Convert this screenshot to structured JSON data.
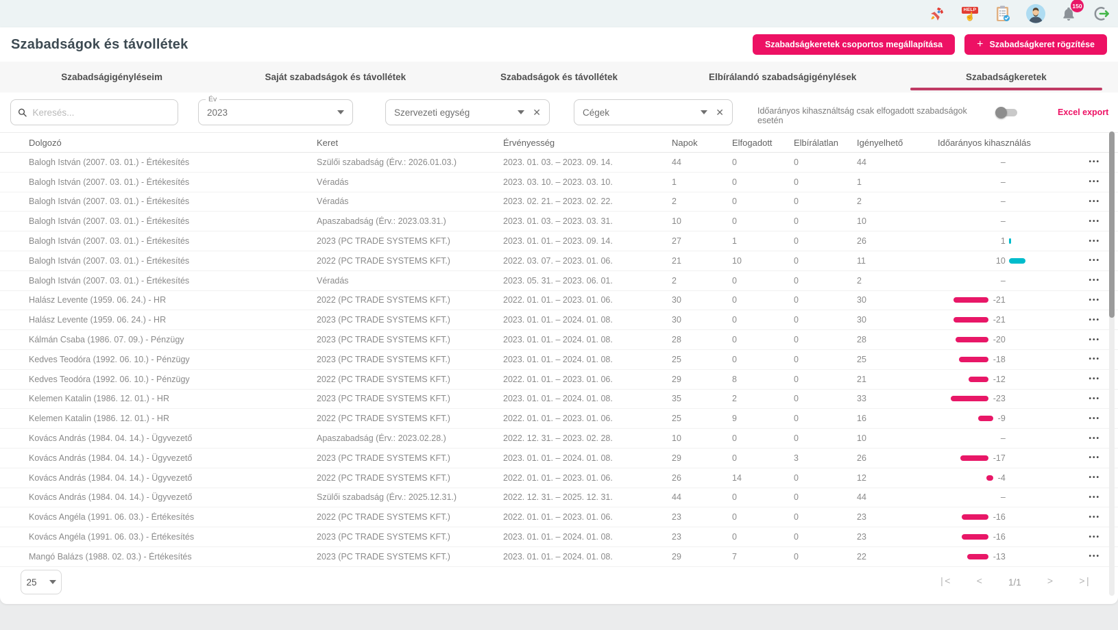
{
  "topbar": {
    "notification_count": "150",
    "help_text": "HELP"
  },
  "header": {
    "title": "Szabadságok és távollétek",
    "buttons": [
      {
        "label": "Szabadságkeretek csoportos megállapítása"
      },
      {
        "label": "Szabadságkeret rögzítése",
        "icon": "+"
      }
    ]
  },
  "tabs": [
    {
      "id": "szabadsagigenyleseim",
      "label": "Szabadságigényléseim",
      "active": false
    },
    {
      "id": "sajat-szabadsagok",
      "label": "Saját szabadságok és távollétek",
      "active": false
    },
    {
      "id": "szabadsagok-es-tavolletek",
      "label": "Szabadságok és távollétek",
      "active": false
    },
    {
      "id": "elbiralando",
      "label": "Elbírálandó szabadságigénylések",
      "active": false
    },
    {
      "id": "szabadsagkeretek",
      "label": "Szabadságkeretek",
      "active": true
    }
  ],
  "filters": {
    "search_placeholder": "Keresés...",
    "year_label": "Év",
    "year_value": "2023",
    "org_unit_label": "Szervezeti egység",
    "companies_label": "Cégek",
    "toggle_label": "Időarányos kihasználtság csak elfogadott szabadságok esetén",
    "toggle_on": false,
    "excel_export_label": "Excel export",
    "clear_glyph": "✕"
  },
  "table": {
    "columns": [
      "Dolgozó",
      "Keret",
      "Érvényesség",
      "Napok",
      "Elfogadott",
      "Elbírálatlan",
      "Igényelhető",
      "Időarányos kihasználás"
    ],
    "empty_marker": "–",
    "rows": [
      {
        "dolgozo": "Balogh István (2007. 03. 01.) - Értékesítés",
        "keret": "Szülői szabadság (Érv.: 2026.01.03.)",
        "ervenyesseg": "2023. 01. 03. – 2023. 09. 14.",
        "napok": "44",
        "elfogadott": "0",
        "elbiralatlan": "0",
        "igenyelheto": "44",
        "kihasznalas": null
      },
      {
        "dolgozo": "Balogh István (2007. 03. 01.) - Értékesítés",
        "keret": "Véradás",
        "ervenyesseg": "2023. 03. 10. – 2023. 03. 10.",
        "napok": "1",
        "elfogadott": "0",
        "elbiralatlan": "0",
        "igenyelheto": "1",
        "kihasznalas": null
      },
      {
        "dolgozo": "Balogh István (2007. 03. 01.) - Értékesítés",
        "keret": "Véradás",
        "ervenyesseg": "2023. 02. 21. – 2023. 02. 22.",
        "napok": "2",
        "elfogadott": "0",
        "elbiralatlan": "0",
        "igenyelheto": "2",
        "kihasznalas": null
      },
      {
        "dolgozo": "Balogh István (2007. 03. 01.) - Értékesítés",
        "keret": "Apaszabadság (Érv.: 2023.03.31.)",
        "ervenyesseg": "2023. 01. 03. – 2023. 03. 31.",
        "napok": "10",
        "elfogadott": "0",
        "elbiralatlan": "0",
        "igenyelheto": "10",
        "kihasznalas": null
      },
      {
        "dolgozo": "Balogh István (2007. 03. 01.) - Értékesítés",
        "keret": "2023 (PC TRADE SYSTEMS KFT.)",
        "ervenyesseg": "2023. 01. 01. – 2023. 09. 14.",
        "napok": "27",
        "elfogadott": "1",
        "elbiralatlan": "0",
        "igenyelheto": "26",
        "kihasznalas": 1
      },
      {
        "dolgozo": "Balogh István (2007. 03. 01.) - Értékesítés",
        "keret": "2022 (PC TRADE SYSTEMS KFT.)",
        "ervenyesseg": "2022. 03. 07. – 2023. 01. 06.",
        "napok": "21",
        "elfogadott": "10",
        "elbiralatlan": "0",
        "igenyelheto": "11",
        "kihasznalas": 10
      },
      {
        "dolgozo": "Balogh István (2007. 03. 01.) - Értékesítés",
        "keret": "Véradás",
        "ervenyesseg": "2023. 05. 31. – 2023. 06. 01.",
        "napok": "2",
        "elfogadott": "0",
        "elbiralatlan": "0",
        "igenyelheto": "2",
        "kihasznalas": null
      },
      {
        "dolgozo": "Halász Levente (1959. 06. 24.) - HR",
        "keret": "2022 (PC TRADE SYSTEMS KFT.)",
        "ervenyesseg": "2022. 01. 01. – 2023. 01. 06.",
        "napok": "30",
        "elfogadott": "0",
        "elbiralatlan": "0",
        "igenyelheto": "30",
        "kihasznalas": -21
      },
      {
        "dolgozo": "Halász Levente (1959. 06. 24.) - HR",
        "keret": "2023 (PC TRADE SYSTEMS KFT.)",
        "ervenyesseg": "2023. 01. 01. – 2024. 01. 08.",
        "napok": "30",
        "elfogadott": "0",
        "elbiralatlan": "0",
        "igenyelheto": "30",
        "kihasznalas": -21
      },
      {
        "dolgozo": "Kálmán Csaba (1986. 07. 09.) - Pénzügy",
        "keret": "2023 (PC TRADE SYSTEMS KFT.)",
        "ervenyesseg": "2023. 01. 01. – 2024. 01. 08.",
        "napok": "28",
        "elfogadott": "0",
        "elbiralatlan": "0",
        "igenyelheto": "28",
        "kihasznalas": -20
      },
      {
        "dolgozo": "Kedves Teodóra (1992. 06. 10.) - Pénzügy",
        "keret": "2023 (PC TRADE SYSTEMS KFT.)",
        "ervenyesseg": "2023. 01. 01. – 2024. 01. 08.",
        "napok": "25",
        "elfogadott": "0",
        "elbiralatlan": "0",
        "igenyelheto": "25",
        "kihasznalas": -18
      },
      {
        "dolgozo": "Kedves Teodóra (1992. 06. 10.) - Pénzügy",
        "keret": "2022 (PC TRADE SYSTEMS KFT.)",
        "ervenyesseg": "2022. 01. 01. – 2023. 01. 06.",
        "napok": "29",
        "elfogadott": "8",
        "elbiralatlan": "0",
        "igenyelheto": "21",
        "kihasznalas": -12
      },
      {
        "dolgozo": "Kelemen Katalin (1986. 12. 01.) - HR",
        "keret": "2023 (PC TRADE SYSTEMS KFT.)",
        "ervenyesseg": "2023. 01. 01. – 2024. 01. 08.",
        "napok": "35",
        "elfogadott": "2",
        "elbiralatlan": "0",
        "igenyelheto": "33",
        "kihasznalas": -23
      },
      {
        "dolgozo": "Kelemen Katalin (1986. 12. 01.) - HR",
        "keret": "2022 (PC TRADE SYSTEMS KFT.)",
        "ervenyesseg": "2022. 01. 01. – 2023. 01. 06.",
        "napok": "25",
        "elfogadott": "9",
        "elbiralatlan": "0",
        "igenyelheto": "16",
        "kihasznalas": -9
      },
      {
        "dolgozo": "Kovács András (1984. 04. 14.) - Ügyvezető",
        "keret": "Apaszabadság (Érv.: 2023.02.28.)",
        "ervenyesseg": "2022. 12. 31. – 2023. 02. 28.",
        "napok": "10",
        "elfogadott": "0",
        "elbiralatlan": "0",
        "igenyelheto": "10",
        "kihasznalas": null
      },
      {
        "dolgozo": "Kovács András (1984. 04. 14.) - Ügyvezető",
        "keret": "2023 (PC TRADE SYSTEMS KFT.)",
        "ervenyesseg": "2023. 01. 01. – 2024. 01. 08.",
        "napok": "29",
        "elfogadott": "0",
        "elbiralatlan": "3",
        "igenyelheto": "26",
        "kihasznalas": -17
      },
      {
        "dolgozo": "Kovács András (1984. 04. 14.) - Ügyvezető",
        "keret": "2022 (PC TRADE SYSTEMS KFT.)",
        "ervenyesseg": "2022. 01. 01. – 2023. 01. 06.",
        "napok": "26",
        "elfogadott": "14",
        "elbiralatlan": "0",
        "igenyelheto": "12",
        "kihasznalas": -4
      },
      {
        "dolgozo": "Kovács András (1984. 04. 14.) - Ügyvezető",
        "keret": "Szülői szabadság (Érv.: 2025.12.31.)",
        "ervenyesseg": "2022. 12. 31. – 2025. 12. 31.",
        "napok": "44",
        "elfogadott": "0",
        "elbiralatlan": "0",
        "igenyelheto": "44",
        "kihasznalas": null
      },
      {
        "dolgozo": "Kovács Angéla (1991. 06. 03.) - Értékesítés",
        "keret": "2022 (PC TRADE SYSTEMS KFT.)",
        "ervenyesseg": "2022. 01. 01. – 2023. 01. 06.",
        "napok": "23",
        "elfogadott": "0",
        "elbiralatlan": "0",
        "igenyelheto": "23",
        "kihasznalas": -16
      },
      {
        "dolgozo": "Kovács Angéla (1991. 06. 03.) - Értékesítés",
        "keret": "2023 (PC TRADE SYSTEMS KFT.)",
        "ervenyesseg": "2023. 01. 01. – 2024. 01. 08.",
        "napok": "23",
        "elfogadott": "0",
        "elbiralatlan": "0",
        "igenyelheto": "23",
        "kihasznalas": -16
      },
      {
        "dolgozo": "Mangó Balázs (1988. 02. 03.) - Értékesítés",
        "keret": "2023 (PC TRADE SYSTEMS KFT.)",
        "ervenyesseg": "2023. 01. 01. – 2024. 01. 08.",
        "napok": "29",
        "elfogadott": "7",
        "elbiralatlan": "0",
        "igenyelheto": "22",
        "kihasznalas": -13
      }
    ]
  },
  "pagination": {
    "page_size": "25",
    "indicator": "1/1",
    "nav": [
      "|<",
      "<",
      ">",
      ">|"
    ]
  },
  "colors": {
    "accent": "#ed1164",
    "tab_underline": "#c03a64",
    "positive_bar": "#00bccc",
    "negative_bar": "#e81767",
    "badge": "#e81767"
  }
}
